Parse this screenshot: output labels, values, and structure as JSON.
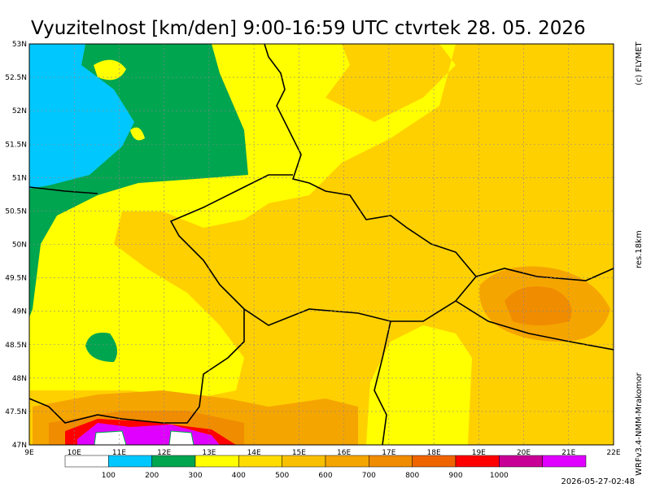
{
  "title": "Vyuzitelnost [km/den] 9:00-16:59 UTC ctvrtek 28. 05. 2026",
  "latitude_labels": [
    "53N",
    "52.5N",
    "52N",
    "51.5N",
    "51N",
    "50.5N",
    "50N",
    "49.5N",
    "49N",
    "48.5N",
    "48N",
    "47.5N",
    "47N"
  ],
  "longitude_labels": [
    "9E",
    "10E",
    "11E",
    "12E",
    "13E",
    "14E",
    "15E",
    "16E",
    "17E",
    "18E",
    "19E",
    "20E",
    "21E",
    "22E"
  ],
  "credit": "(c) FLYMET",
  "resolution": "res.18km",
  "model": "WRFv3.4-NMM-Mrakomor",
  "timestamp": "2026-05-27-02:48",
  "legend": {
    "labels": [
      "100",
      "200",
      "300",
      "400",
      "500",
      "600",
      "700",
      "800",
      "900",
      "1000"
    ],
    "colors": [
      "#ffffff",
      "#00c8ff",
      "#00a550",
      "#ffff00",
      "#ffdc00",
      "#f8c000",
      "#f5a500",
      "#f08c00",
      "#f06400",
      "#ff0000",
      "#c80096",
      "#e000ff"
    ]
  }
}
